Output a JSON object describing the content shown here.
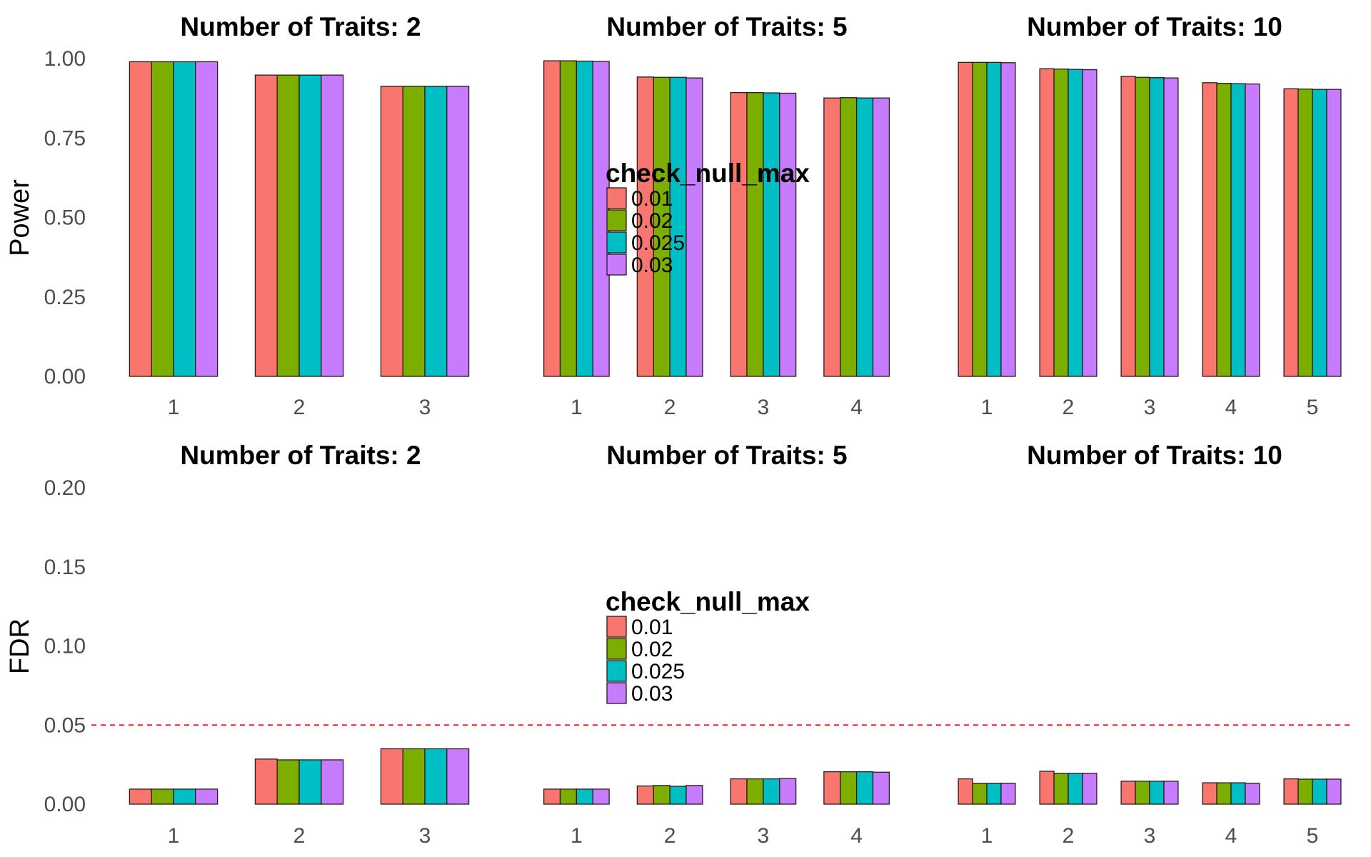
{
  "chart_data": [
    {
      "type": "bar",
      "ylabel": "Power",
      "ylim": [
        0,
        1
      ],
      "yticks": [
        "0.00",
        "0.25",
        "0.50",
        "0.75",
        "1.00"
      ],
      "legend": {
        "title": "check_null_max",
        "entries": [
          "0.01",
          "0.02",
          "0.025",
          "0.03"
        ],
        "colors": [
          "#F8766D",
          "#7CAE00",
          "#00BFC4",
          "#C77CFF"
        ]
      },
      "panels": [
        {
          "title": "Number of Traits: 2",
          "categories": [
            "1",
            "2",
            "3"
          ],
          "series": [
            {
              "name": "0.01",
              "values": [
                0.99,
                0.948,
                0.913
              ]
            },
            {
              "name": "0.02",
              "values": [
                0.99,
                0.948,
                0.913
              ]
            },
            {
              "name": "0.025",
              "values": [
                0.99,
                0.948,
                0.913
              ]
            },
            {
              "name": "0.03",
              "values": [
                0.99,
                0.948,
                0.913
              ]
            }
          ]
        },
        {
          "title": "Number of Traits: 5",
          "categories": [
            "1",
            "2",
            "3",
            "4"
          ],
          "series": [
            {
              "name": "0.01",
              "values": [
                0.993,
                0.942,
                0.893,
                0.876
              ]
            },
            {
              "name": "0.02",
              "values": [
                0.993,
                0.941,
                0.893,
                0.877
              ]
            },
            {
              "name": "0.025",
              "values": [
                0.992,
                0.941,
                0.892,
                0.876
              ]
            },
            {
              "name": "0.03",
              "values": [
                0.991,
                0.939,
                0.891,
                0.876
              ]
            }
          ]
        },
        {
          "title": "Number of Traits: 10",
          "categories": [
            "1",
            "2",
            "3",
            "4",
            "5"
          ],
          "series": [
            {
              "name": "0.01",
              "values": [
                0.988,
                0.968,
                0.944,
                0.924,
                0.905
              ]
            },
            {
              "name": "0.02",
              "values": [
                0.988,
                0.967,
                0.941,
                0.922,
                0.904
              ]
            },
            {
              "name": "0.025",
              "values": [
                0.988,
                0.966,
                0.94,
                0.921,
                0.903
              ]
            },
            {
              "name": "0.03",
              "values": [
                0.987,
                0.965,
                0.939,
                0.92,
                0.903
              ]
            }
          ]
        }
      ]
    },
    {
      "type": "bar",
      "ylabel": "FDR",
      "ylim": [
        0,
        0.2
      ],
      "yticks": [
        "0.00",
        "0.05",
        "0.10",
        "0.15",
        "0.20"
      ],
      "reference_line": {
        "y": 0.05,
        "color": "#e8202a",
        "style": "dashed"
      },
      "legend": {
        "title": "check_null_max",
        "entries": [
          "0.01",
          "0.02",
          "0.025",
          "0.03"
        ],
        "colors": [
          "#F8766D",
          "#7CAE00",
          "#00BFC4",
          "#C77CFF"
        ]
      },
      "panels": [
        {
          "title": "Number of Traits: 2",
          "categories": [
            "1",
            "2",
            "3"
          ],
          "series": [
            {
              "name": "0.01",
              "values": [
                0.0095,
                0.0285,
                0.035
              ]
            },
            {
              "name": "0.02",
              "values": [
                0.0095,
                0.028,
                0.035
              ]
            },
            {
              "name": "0.025",
              "values": [
                0.0095,
                0.028,
                0.035
              ]
            },
            {
              "name": "0.03",
              "values": [
                0.0095,
                0.028,
                0.035
              ]
            }
          ]
        },
        {
          "title": "Number of Traits: 5",
          "categories": [
            "1",
            "2",
            "3",
            "4"
          ],
          "series": [
            {
              "name": "0.01",
              "values": [
                0.0095,
                0.0115,
                0.016,
                0.0205
              ]
            },
            {
              "name": "0.02",
              "values": [
                0.0095,
                0.0118,
                0.016,
                0.0205
              ]
            },
            {
              "name": "0.025",
              "values": [
                0.0095,
                0.0113,
                0.016,
                0.0205
              ]
            },
            {
              "name": "0.03",
              "values": [
                0.0095,
                0.0118,
                0.0162,
                0.0202
              ]
            }
          ]
        },
        {
          "title": "Number of Traits: 10",
          "categories": [
            "1",
            "2",
            "3",
            "4",
            "5"
          ],
          "series": [
            {
              "name": "0.01",
              "values": [
                0.016,
                0.0208,
                0.0145,
                0.0135,
                0.016
              ]
            },
            {
              "name": "0.02",
              "values": [
                0.0132,
                0.0195,
                0.0145,
                0.0135,
                0.0158
              ]
            },
            {
              "name": "0.025",
              "values": [
                0.0132,
                0.0195,
                0.0145,
                0.0135,
                0.0158
              ]
            },
            {
              "name": "0.03",
              "values": [
                0.0132,
                0.0195,
                0.0145,
                0.0132,
                0.0158
              ]
            }
          ]
        }
      ]
    }
  ]
}
